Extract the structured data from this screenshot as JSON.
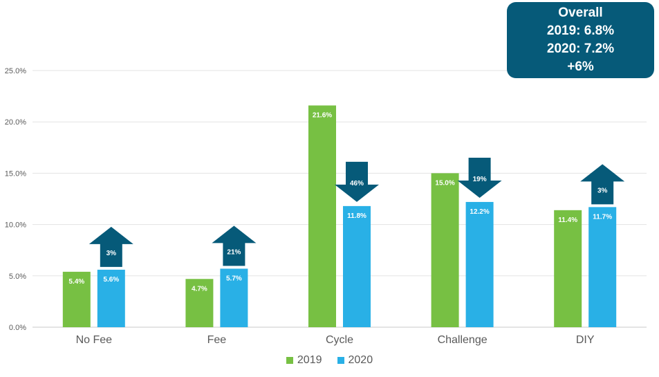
{
  "chart_data": {
    "type": "bar",
    "categories": [
      "No Fee",
      "Fee",
      "Cycle",
      "Challenge",
      "DIY"
    ],
    "series": [
      {
        "name": "2019",
        "values": [
          5.4,
          4.7,
          21.6,
          15.0,
          11.4
        ],
        "labels": [
          "5.4%",
          "4.7%",
          "21.6%",
          "15.0%",
          "11.4%"
        ],
        "color": "#77c043"
      },
      {
        "name": "2020",
        "values": [
          5.6,
          5.7,
          11.8,
          12.2,
          11.7
        ],
        "labels": [
          "5.6%",
          "5.7%",
          "11.8%",
          "12.2%",
          "11.7%"
        ],
        "color": "#29b0e6"
      }
    ],
    "changes": [
      {
        "label": "3%",
        "direction": "up"
      },
      {
        "label": "21%",
        "direction": "up"
      },
      {
        "label": "46%",
        "direction": "down"
      },
      {
        "label": "19%",
        "direction": "down"
      },
      {
        "label": "3%",
        "direction": "up"
      }
    ],
    "yticks": [
      "0.0%",
      "5.0%",
      "10.0%",
      "15.0%",
      "20.0%",
      "25.0%"
    ],
    "ylim": [
      0,
      25
    ],
    "grid": true,
    "legend_position": "bottom",
    "arrow_color": "#065a79",
    "title": "",
    "xlabel": "",
    "ylabel": ""
  },
  "overall": {
    "lines": [
      "Overall",
      "2019: 6.8%",
      "2020: 7.2%",
      "+6%"
    ],
    "color": "#065a79"
  },
  "legend": {
    "items": [
      {
        "label": "2019",
        "color": "#77c043"
      },
      {
        "label": "2020",
        "color": "#29b0e6"
      }
    ]
  }
}
